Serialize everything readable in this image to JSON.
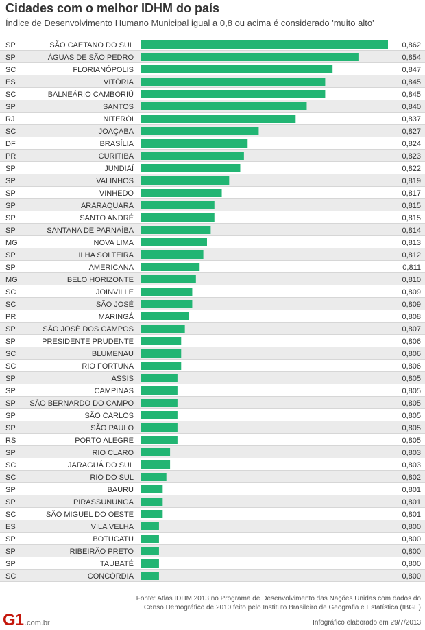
{
  "header": {
    "title": "Cidades com o melhor IDHM do país",
    "subtitle": "Índice de Desenvolvimento Humano Municipal igual a 0,8 ou acima é considerado 'muito alto'"
  },
  "footer": {
    "source_line1": "Fonte: Atlas IDHM 2013 no Programa de Desenvolvimento das Nações Unidas com dados do",
    "source_line2": "Censo Demográfico de 2010 feito pelo Instituto Brasileiro de Geografia e Estatística (IBGE)",
    "logo_mark": "G1",
    "logo_text": ".com.br",
    "credit": "Infográfico elaborado em 29/7/2013"
  },
  "colors": {
    "bar": "#22b573",
    "row_stripe": "#ebebeb",
    "row_line": "#d6d6d6"
  },
  "chart_data": {
    "type": "bar",
    "orientation": "horizontal",
    "title": "Cidades com o melhor IDHM do país",
    "xlim": [
      0.795,
      0.862
    ],
    "rows": [
      {
        "state": "SP",
        "city": "SÃO CAETANO DO SUL",
        "value": 0.862,
        "label": "0,862"
      },
      {
        "state": "SP",
        "city": "ÁGUAS DE SÃO PEDRO",
        "value": 0.854,
        "label": "0,854"
      },
      {
        "state": "SC",
        "city": "FLORIANÓPOLIS",
        "value": 0.847,
        "label": "0,847"
      },
      {
        "state": "ES",
        "city": "VITÓRIA",
        "value": 0.845,
        "label": "0,845"
      },
      {
        "state": "SC",
        "city": "BALNEÁRIO CAMBORIÚ",
        "value": 0.845,
        "label": "0,845"
      },
      {
        "state": "SP",
        "city": "SANTOS",
        "value": 0.84,
        "label": "0,840"
      },
      {
        "state": "RJ",
        "city": "NITERÓI",
        "value": 0.837,
        "label": "0,837"
      },
      {
        "state": "SC",
        "city": "JOAÇABA",
        "value": 0.827,
        "label": "0,827"
      },
      {
        "state": "DF",
        "city": "BRASÍLIA",
        "value": 0.824,
        "label": "0,824"
      },
      {
        "state": "PR",
        "city": "CURITIBA",
        "value": 0.823,
        "label": "0,823"
      },
      {
        "state": "SP",
        "city": "JUNDIAÍ",
        "value": 0.822,
        "label": "0,822"
      },
      {
        "state": "SP",
        "city": "VALINHOS",
        "value": 0.819,
        "label": "0,819"
      },
      {
        "state": "SP",
        "city": "VINHEDO",
        "value": 0.817,
        "label": "0,817"
      },
      {
        "state": "SP",
        "city": "ARARAQUARA",
        "value": 0.815,
        "label": "0,815"
      },
      {
        "state": "SP",
        "city": "SANTO ANDRÉ",
        "value": 0.815,
        "label": "0,815"
      },
      {
        "state": "SP",
        "city": "SANTANA DE PARNAÍBA",
        "value": 0.814,
        "label": "0,814"
      },
      {
        "state": "MG",
        "city": "NOVA LIMA",
        "value": 0.813,
        "label": "0,813"
      },
      {
        "state": "SP",
        "city": "ILHA SOLTEIRA",
        "value": 0.812,
        "label": "0,812"
      },
      {
        "state": "SP",
        "city": "AMERICANA",
        "value": 0.811,
        "label": "0,811"
      },
      {
        "state": "MG",
        "city": "BELO HORIZONTE",
        "value": 0.81,
        "label": "0,810"
      },
      {
        "state": "SC",
        "city": "JOINVILLE",
        "value": 0.809,
        "label": "0,809"
      },
      {
        "state": "SC",
        "city": "SÃO JOSÉ",
        "value": 0.809,
        "label": "0,809"
      },
      {
        "state": "PR",
        "city": "MARINGÁ",
        "value": 0.808,
        "label": "0,808"
      },
      {
        "state": "SP",
        "city": "SÃO JOSÉ DOS CAMPOS",
        "value": 0.807,
        "label": "0,807"
      },
      {
        "state": "SP",
        "city": "PRESIDENTE PRUDENTE",
        "value": 0.806,
        "label": "0,806"
      },
      {
        "state": "SC",
        "city": "BLUMENAU",
        "value": 0.806,
        "label": "0,806"
      },
      {
        "state": "SC",
        "city": "RIO FORTUNA",
        "value": 0.806,
        "label": "0,806"
      },
      {
        "state": "SP",
        "city": "ASSIS",
        "value": 0.805,
        "label": "0,805"
      },
      {
        "state": "SP",
        "city": "CAMPINAS",
        "value": 0.805,
        "label": "0,805"
      },
      {
        "state": "SP",
        "city": "SÃO BERNARDO DO CAMPO",
        "value": 0.805,
        "label": "0,805"
      },
      {
        "state": "SP",
        "city": "SÃO CARLOS",
        "value": 0.805,
        "label": "0,805"
      },
      {
        "state": "SP",
        "city": "SÃO PAULO",
        "value": 0.805,
        "label": "0,805"
      },
      {
        "state": "RS",
        "city": "PORTO ALEGRE",
        "value": 0.805,
        "label": "0,805"
      },
      {
        "state": "SP",
        "city": "RIO CLARO",
        "value": 0.803,
        "label": "0,803"
      },
      {
        "state": "SC",
        "city": "JARAGUÁ DO SUL",
        "value": 0.803,
        "label": "0,803"
      },
      {
        "state": "SC",
        "city": "RIO DO SUL",
        "value": 0.802,
        "label": "0,802"
      },
      {
        "state": "SP",
        "city": "BAURU",
        "value": 0.801,
        "label": "0,801"
      },
      {
        "state": "SP",
        "city": "PIRASSUNUNGA",
        "value": 0.801,
        "label": "0,801"
      },
      {
        "state": "SC",
        "city": "SÃO MIGUEL DO OESTE",
        "value": 0.801,
        "label": "0,801"
      },
      {
        "state": "ES",
        "city": "VILA VELHA",
        "value": 0.8,
        "label": "0,800"
      },
      {
        "state": "SP",
        "city": "BOTUCATU",
        "value": 0.8,
        "label": "0,800"
      },
      {
        "state": "SP",
        "city": "RIBEIRÃO PRETO",
        "value": 0.8,
        "label": "0,800"
      },
      {
        "state": "SP",
        "city": "TAUBATÉ",
        "value": 0.8,
        "label": "0,800"
      },
      {
        "state": "SC",
        "city": "CONCÓRDIA",
        "value": 0.8,
        "label": "0,800"
      }
    ]
  }
}
